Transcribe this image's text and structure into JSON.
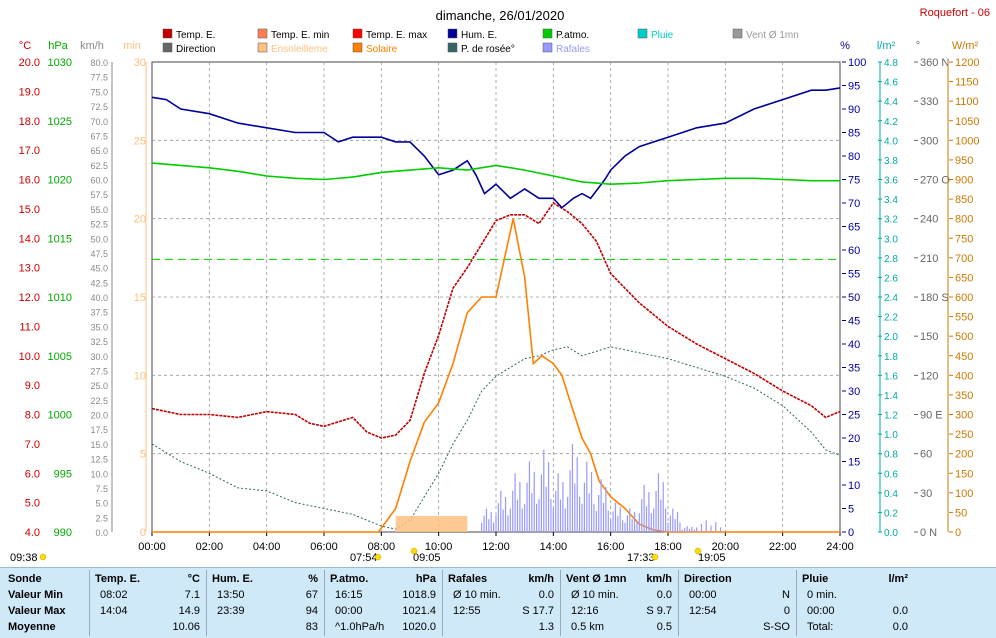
{
  "station": "Roquefort - 06",
  "title": "dimanche, 26/01/2020",
  "legend": [
    {
      "label": "Temp. E.",
      "color": "#c00000"
    },
    {
      "label": "Temp. E. min",
      "color": "#ff7f50"
    },
    {
      "label": "Temp. E. max",
      "color": "#ff0000"
    },
    {
      "label": "Hum. E.",
      "color": "#000099"
    },
    {
      "label": "P.atmo.",
      "color": "#00cc00"
    },
    {
      "label": "Pluie",
      "color": "#00cccc"
    },
    {
      "label": "Vent Ø 1mn",
      "color": "#999999"
    },
    {
      "label": "Direction",
      "color": "#666666"
    },
    {
      "label": "Ensoleilleme",
      "color": "#ffc080"
    },
    {
      "label": "Solaire",
      "color": "#ff8000"
    },
    {
      "label": "P. de rosée°",
      "color": "#336666"
    },
    {
      "label": "Rafales",
      "color": "#9999ff"
    }
  ],
  "axes": {
    "temp": {
      "unit": "°C",
      "color": "#cc0000",
      "ticks": [
        "20.0",
        "19.0",
        "18.0",
        "17.0",
        "16.0",
        "15.0",
        "14.0",
        "13.0",
        "12.0",
        "11.0",
        "10.0",
        "9.0",
        "8.0",
        "7.0",
        "6.0",
        "5.0",
        "4.0"
      ]
    },
    "press": {
      "unit": "hPa",
      "color": "#00aa00",
      "ticks": [
        "1030",
        "1025",
        "1020",
        "1015",
        "1010",
        "1005",
        "1000",
        "995",
        "990"
      ]
    },
    "wind": {
      "unit": "km/h",
      "color": "#888888",
      "ticks": [
        "80.0",
        "77.5",
        "75.0",
        "72.5",
        "70.0",
        "67.5",
        "65.0",
        "62.5",
        "60.0",
        "57.5",
        "55.0",
        "52.5",
        "50.0",
        "47.5",
        "45.0",
        "42.5",
        "40.0",
        "37.5",
        "35.0",
        "32.5",
        "30.0",
        "27.5",
        "25.0",
        "22.5",
        "20.0",
        "17.5",
        "15.0",
        "12.5",
        "10.0",
        "7.5",
        "5.0",
        "2.5",
        "0.0"
      ]
    },
    "min": {
      "unit": "min",
      "color": "#ffc080",
      "ticks": [
        "30",
        "25",
        "20",
        "15",
        "10",
        "5",
        "0"
      ]
    },
    "hum": {
      "unit": "%",
      "color": "#000099",
      "ticks": [
        "100",
        "95",
        "90",
        "85",
        "80",
        "75",
        "70",
        "65",
        "60",
        "55",
        "50",
        "45",
        "40",
        "35",
        "30",
        "25",
        "20",
        "15",
        "10",
        "5",
        "0"
      ]
    },
    "rain": {
      "unit": "l/m²",
      "color": "#00aaaa",
      "ticks": [
        "4.8",
        "4.6",
        "4.4",
        "4.2",
        "4.0",
        "3.8",
        "3.6",
        "3.4",
        "3.2",
        "3.0",
        "2.8",
        "2.6",
        "2.4",
        "2.2",
        "2.0",
        "1.8",
        "1.6",
        "1.4",
        "1.2",
        "1.0",
        "0.8",
        "0.6",
        "0.4",
        "0.2",
        "0.0"
      ]
    },
    "dir": {
      "unit": "°",
      "color": "#666666",
      "ticks": [
        "360 N",
        "330",
        "300",
        "270 O",
        "240",
        "210",
        "180 S",
        "150",
        "120",
        "90 E",
        "60",
        "30",
        "0 N"
      ]
    },
    "solar": {
      "unit": "W/m²",
      "color": "#cc7a00",
      "ticks": [
        "1200",
        "1150",
        "1100",
        "1050",
        "1000",
        "950",
        "900",
        "850",
        "800",
        "750",
        "700",
        "650",
        "600",
        "550",
        "500",
        "450",
        "400",
        "350",
        "300",
        "250",
        "200",
        "150",
        "100",
        "50",
        "0"
      ]
    }
  },
  "x_ticks": [
    "00:00",
    "02:00",
    "04:00",
    "06:00",
    "08:00",
    "10:00",
    "12:00",
    "14:00",
    "16:00",
    "18:00",
    "20:00",
    "22:00",
    "24:00"
  ],
  "time_markers": [
    {
      "label": "09:38",
      "icon": "sun-icon"
    },
    {
      "label": "07:54",
      "icon": "sunrise-icon"
    },
    {
      "label": "09:05",
      "icon": "moonrise-icon"
    },
    {
      "label": "17:33",
      "icon": "sunset-icon"
    },
    {
      "label": "19:05",
      "icon": "moonset-icon"
    }
  ],
  "chart_data": {
    "type": "line",
    "title": "dimanche, 26/01/2020",
    "x_unit": "hours",
    "xlim": [
      0,
      24
    ],
    "series": [
      {
        "name": "Temp. E.",
        "unit": "°C",
        "color": "#c00000",
        "ylim": [
          4,
          20
        ],
        "x": [
          0,
          1,
          2,
          3,
          4,
          5,
          5.5,
          6,
          7,
          7.5,
          8,
          8.5,
          9,
          9.5,
          10,
          10.5,
          11,
          11.5,
          12,
          12.5,
          13,
          13.5,
          14,
          14.5,
          15,
          15.5,
          16,
          17,
          18,
          19,
          20,
          21,
          22,
          23,
          23.5,
          24
        ],
        "y": [
          8.2,
          8.0,
          8.0,
          7.9,
          8.1,
          8.0,
          7.7,
          7.6,
          7.9,
          7.4,
          7.2,
          7.3,
          7.8,
          9.4,
          10.7,
          12.3,
          13.0,
          13.8,
          14.6,
          14.8,
          14.8,
          14.5,
          15.2,
          14.9,
          14.5,
          13.9,
          12.8,
          11.8,
          11.0,
          10.4,
          9.9,
          9.4,
          8.8,
          8.3,
          7.9,
          8.1
        ]
      },
      {
        "name": "Hum. E.",
        "unit": "%",
        "color": "#000099",
        "ylim": [
          0,
          100
        ],
        "x": [
          0,
          0.5,
          1,
          2,
          3,
          4,
          5,
          6,
          6.5,
          7,
          8,
          8.5,
          9,
          9.5,
          10,
          10.5,
          11,
          11.3,
          11.6,
          12,
          12.5,
          13,
          13.5,
          14,
          14.3,
          14.7,
          15,
          15.3,
          15.8,
          16,
          16.5,
          17,
          18,
          19,
          20,
          21,
          22,
          23,
          23.5,
          24
        ],
        "y": [
          92.5,
          92,
          90,
          89,
          87,
          86,
          85,
          85,
          83,
          84,
          84,
          83,
          83,
          80,
          76,
          77,
          79,
          76,
          72,
          74,
          71,
          73,
          71,
          71,
          69,
          71,
          72,
          71,
          75,
          77,
          80,
          82,
          84,
          86,
          87,
          90,
          92,
          94,
          94,
          94.5
        ]
      },
      {
        "name": "P.atmo.",
        "unit": "hPa",
        "color": "#00cc00",
        "ylim": [
          990,
          1030
        ],
        "x": [
          0,
          1,
          2,
          3,
          4,
          5,
          6,
          7,
          8,
          9,
          10,
          11,
          12,
          13,
          14,
          15,
          16,
          17,
          18,
          19,
          20,
          21,
          22,
          23,
          24
        ],
        "y": [
          1021.4,
          1021.2,
          1021,
          1020.7,
          1020.3,
          1020.1,
          1020,
          1020.2,
          1020.6,
          1020.8,
          1021,
          1020.8,
          1021.2,
          1020.8,
          1020.3,
          1019.8,
          1019.6,
          1019.7,
          1019.9,
          1020,
          1020.1,
          1020.1,
          1020,
          1019.9,
          1019.9
        ]
      },
      {
        "name": "P. de rosée°",
        "unit": "°C",
        "color": "#336666",
        "ylim": [
          4,
          20
        ],
        "x": [
          0,
          1,
          2,
          3,
          4,
          5,
          6,
          7,
          8,
          8.5,
          9,
          9.5,
          10,
          10.5,
          11,
          11.5,
          12,
          12.5,
          13,
          13.5,
          14,
          14.5,
          15,
          16,
          17,
          18,
          19,
          20,
          21,
          22,
          23,
          23.5,
          24
        ],
        "y": [
          7.0,
          6.4,
          6.0,
          5.5,
          5.4,
          5.0,
          4.8,
          4.6,
          4.2,
          4.1,
          4.4,
          5.2,
          6.0,
          7.0,
          7.8,
          8.8,
          9.3,
          9.6,
          9.9,
          10.0,
          10.2,
          10.3,
          10.0,
          10.3,
          10.1,
          9.9,
          9.6,
          9.3,
          8.9,
          8.3,
          7.4,
          6.8,
          6.6
        ]
      },
      {
        "name": "Solaire",
        "unit": "W/m²",
        "color": "#ff8000",
        "ylim": [
          0,
          1200
        ],
        "x": [
          0,
          7.9,
          8.5,
          9,
          9.5,
          10,
          10.5,
          11,
          11.5,
          12,
          12.3,
          12.6,
          13,
          13.3,
          13.6,
          14,
          14.3,
          14.6,
          15,
          15.3,
          15.6,
          16,
          16.5,
          17,
          17.5,
          18,
          24
        ],
        "y": [
          0,
          0,
          60,
          180,
          280,
          330,
          430,
          560,
          600,
          600,
          700,
          800,
          650,
          430,
          450,
          430,
          400,
          330,
          240,
          200,
          130,
          90,
          60,
          20,
          5,
          0,
          0
        ]
      },
      {
        "name": "Rafales",
        "unit": "km/h",
        "color": "#9999ff",
        "ylim": [
          0,
          80
        ],
        "x": [
          0,
          11,
          11.5,
          12,
          12.5,
          13,
          13.5,
          14,
          14.5,
          15,
          15.5,
          16,
          16.5,
          17,
          17.5,
          18,
          18.5,
          19,
          20,
          23,
          24
        ],
        "y": [
          0,
          0,
          4,
          7,
          10,
          12,
          14,
          10,
          15,
          12,
          9,
          5,
          4,
          8,
          10,
          4,
          1,
          2,
          0,
          0,
          0
        ]
      }
    ],
    "reference_lines": [
      {
        "name": "Temp. E. min",
        "value": 7.1
      },
      {
        "name": "Temp. E. max",
        "value": 14.9
      }
    ]
  },
  "table": {
    "rows": [
      "Sonde",
      "Valeur Min",
      "Valeur Max",
      "Moyenne"
    ],
    "temp": {
      "header": "Temp. E.",
      "unit": "°C",
      "min_time": "08:02",
      "min_val": "7.1",
      "max_time": "14:04",
      "max_val": "14.9",
      "avg": "10.06"
    },
    "hum": {
      "header": "Hum. E.",
      "unit": "%",
      "min_time": "13:50",
      "min_val": "67",
      "max_time": "23:39",
      "max_val": "94",
      "avg": "83"
    },
    "press": {
      "header": "P.atmo.",
      "unit": "hPa",
      "min_time": "16:15",
      "min_val": "1018.9",
      "max_time": "00:00",
      "max_val": "1021.4",
      "avg_label": "^1.0hPa/h",
      "avg": "1020.0"
    },
    "gust": {
      "header": "Rafales",
      "unit": "km/h",
      "min_time": "Ø 10 min.",
      "min_val": "0.0",
      "max_time": "12:55",
      "max_val": "S 17.7",
      "avg": "1.3"
    },
    "wind": {
      "header": "Vent Ø 1mn",
      "unit": "km/h",
      "min_time": "Ø 10 min.",
      "min_val": "0.0",
      "max_time": "12:16",
      "max_val": "S 9.7",
      "avg_label": "0.5 km",
      "avg": "0.5"
    },
    "dir": {
      "header": "Direction",
      "min_time": "00:00",
      "min_val": "N",
      "max_time": "12:54",
      "max_val": "0",
      "avg": "S-SO"
    },
    "rain": {
      "header": "Pluie",
      "unit": "l/m²",
      "min_time": "0 min.",
      "min_val": "",
      "max_time": "00:00",
      "max_val": "0.0",
      "avg_label": "Total:",
      "avg": "0.0"
    }
  }
}
